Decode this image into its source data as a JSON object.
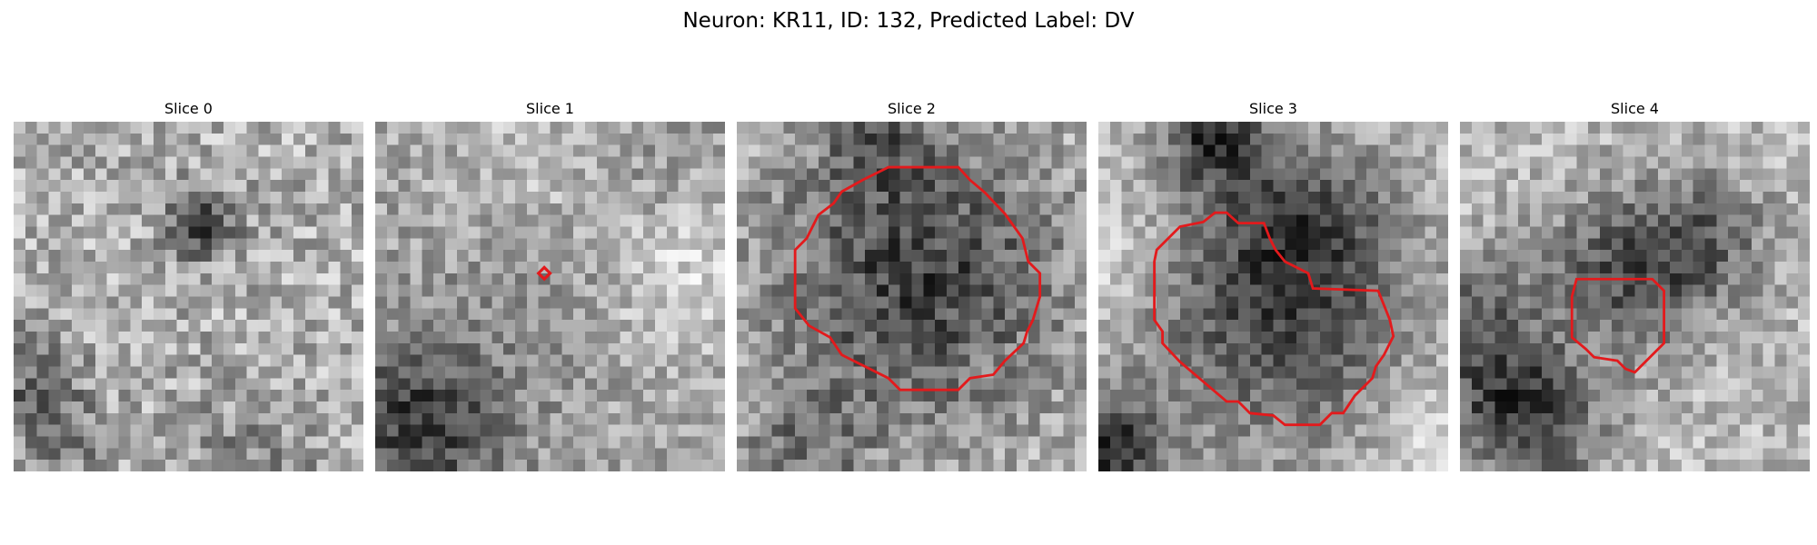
{
  "figure": {
    "title": "Neuron: KR11, ID: 132, Predicted Label: DV"
  },
  "slices": [
    {
      "title": "Slice 0",
      "has_contour": false
    },
    {
      "title": "Slice 1",
      "has_contour": true
    },
    {
      "title": "Slice 2",
      "has_contour": true
    },
    {
      "title": "Slice 3",
      "has_contour": true
    },
    {
      "title": "Slice 4",
      "has_contour": true
    }
  ],
  "colors": {
    "contour": "#e31a1c"
  }
}
